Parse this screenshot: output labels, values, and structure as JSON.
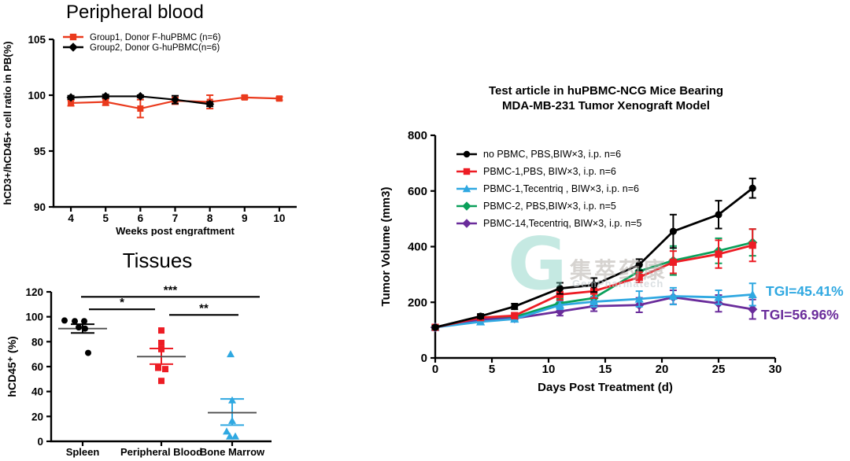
{
  "watermark": {
    "logo_glyph": "G",
    "text_cn": "集萃药康",
    "text_en": "GemPharmatech"
  },
  "chart_data": [
    {
      "id": "peripheral_blood",
      "type": "line",
      "title": "Peripheral blood",
      "xlabel": "Weeks post engraftment",
      "ylabel": "hCD3+/hCD45+ cell ratio in PB(%)",
      "xlim": [
        3.5,
        10.5
      ],
      "ylim": [
        90,
        105
      ],
      "xticks": [
        4,
        5,
        6,
        7,
        8,
        9,
        10
      ],
      "yticks": [
        90,
        95,
        100,
        105
      ],
      "legend": [
        {
          "label": "Group1, Donor F-huPBMC (n=6)",
          "color": "#ea3a1d",
          "marker": "square"
        },
        {
          "label": "Group2, Donor G-huPBMC(n=6)",
          "color": "#000000",
          "marker": "diamond"
        }
      ],
      "series": [
        {
          "name": "Group1",
          "color": "#ea3a1d",
          "marker": "square",
          "x": [
            4,
            5,
            6,
            7,
            8,
            9,
            10
          ],
          "y": [
            99.3,
            99.4,
            98.8,
            99.5,
            99.4,
            99.8,
            99.7
          ],
          "err": [
            0.25,
            0.3,
            0.8,
            0.3,
            0.6,
            0.15,
            0.15
          ]
        },
        {
          "name": "Group2",
          "color": "#000000",
          "marker": "diamond",
          "x": [
            4,
            5,
            6,
            7,
            8
          ],
          "y": [
            99.8,
            99.9,
            99.9,
            99.6,
            99.2
          ],
          "err": [
            0.15,
            0.15,
            0.1,
            0.35,
            0.2
          ]
        }
      ]
    },
    {
      "id": "tissues",
      "type": "scatter",
      "title": "Tissues",
      "ylabel": "hCD45⁺ (%)",
      "ylim": [
        0,
        120
      ],
      "yticks": [
        0,
        20,
        40,
        60,
        80,
        100,
        120
      ],
      "categories": [
        {
          "label": "Spleen",
          "color": "#000000",
          "marker": "circle",
          "points": [
            97,
            96.5,
            96.5,
            91.5,
            90.5,
            71
          ],
          "dx": [
            -23,
            -10,
            2,
            -5,
            3,
            7
          ],
          "mean": 90.5,
          "lo": 87,
          "hi": 94
        },
        {
          "label": "Peripheral Blood",
          "color": "#ed1c24",
          "marker": "square",
          "points": [
            89,
            79,
            74,
            59,
            58,
            48.5
          ],
          "dx": [
            0,
            0,
            0,
            -4,
            5,
            0
          ],
          "mean": 68,
          "lo": 62,
          "hi": 74.5
        },
        {
          "label": "Bone Marrow",
          "color": "#2fa8e1",
          "marker": "triangle",
          "points": [
            70,
            33,
            16.5,
            8,
            4,
            4
          ],
          "dx": [
            -2,
            0,
            0,
            -7,
            -3,
            4
          ],
          "mean": 23,
          "lo": 13,
          "hi": 34
        }
      ],
      "sig": [
        {
          "label": "*",
          "from": 0,
          "to": 1,
          "y": 106
        },
        {
          "label": "**",
          "from": 1,
          "to": 2,
          "y": 101.5
        },
        {
          "label": "***",
          "from": 0,
          "to": 2,
          "y": 116
        }
      ]
    },
    {
      "id": "xenograft",
      "type": "line",
      "title_line1": "Test article in huPBMC-NCG Mice Bearing",
      "title_line2": "MDA-MB-231 Tumor Xenograft Model",
      "xlabel": "Days Post Treatment (d)",
      "ylabel": "Tumor Volume (mm3)",
      "xlim": [
        0,
        30
      ],
      "ylim": [
        0,
        800
      ],
      "xticks": [
        0,
        5,
        10,
        15,
        20,
        25,
        30
      ],
      "yticks": [
        0,
        200,
        400,
        600,
        800
      ],
      "x": [
        0,
        4,
        7,
        11,
        14,
        18,
        21,
        25,
        28
      ],
      "series": [
        {
          "name": "no PBMC, PBS,BIW×3, i.p. n=6",
          "color": "#000000",
          "marker": "circle",
          "y": [
            110,
            150,
            185,
            250,
            262,
            335,
            455,
            515,
            610
          ],
          "err": [
            6,
            8,
            10,
            20,
            25,
            20,
            60,
            50,
            35
          ]
        },
        {
          "name": "PBMC-1,PBS, BIW×3, i.p. n=6",
          "color": "#ed1c24",
          "marker": "square",
          "y": [
            110,
            145,
            152,
            228,
            240,
            290,
            344,
            373,
            405
          ],
          "err": [
            6,
            8,
            10,
            20,
            25,
            18,
            40,
            50,
            58
          ]
        },
        {
          "name": "PBMC-1,Tecentriq , BIW×3, i.p. n=6",
          "color": "#2fa8e1",
          "marker": "triangle",
          "y": [
            110,
            130,
            140,
            190,
            202,
            212,
            222,
            218,
            228
          ],
          "err": [
            6,
            8,
            10,
            15,
            18,
            28,
            30,
            25,
            40
          ]
        },
        {
          "name": "PBMC-2, PBS,BIW×3, i.p. n=5",
          "color": "#0aa05a",
          "marker": "diamond",
          "y": [
            110,
            140,
            147,
            197,
            215,
            312,
            350,
            385,
            415
          ],
          "err": [
            6,
            8,
            10,
            15,
            18,
            25,
            52,
            45,
            48
          ]
        },
        {
          "name": "PBMC-14,Tecentriq, BIW×3, i.p. n=5",
          "color": "#6a2c9b",
          "marker": "diamond",
          "y": [
            110,
            138,
            142,
            167,
            186,
            190,
            218,
            196,
            175
          ],
          "err": [
            6,
            8,
            10,
            15,
            18,
            26,
            25,
            30,
            35
          ]
        }
      ],
      "annotations": [
        {
          "text": "TGI=45.41%",
          "color": "#2fa8e1"
        },
        {
          "text": "TGI=56.96%",
          "color": "#6a2c9b"
        }
      ]
    }
  ]
}
